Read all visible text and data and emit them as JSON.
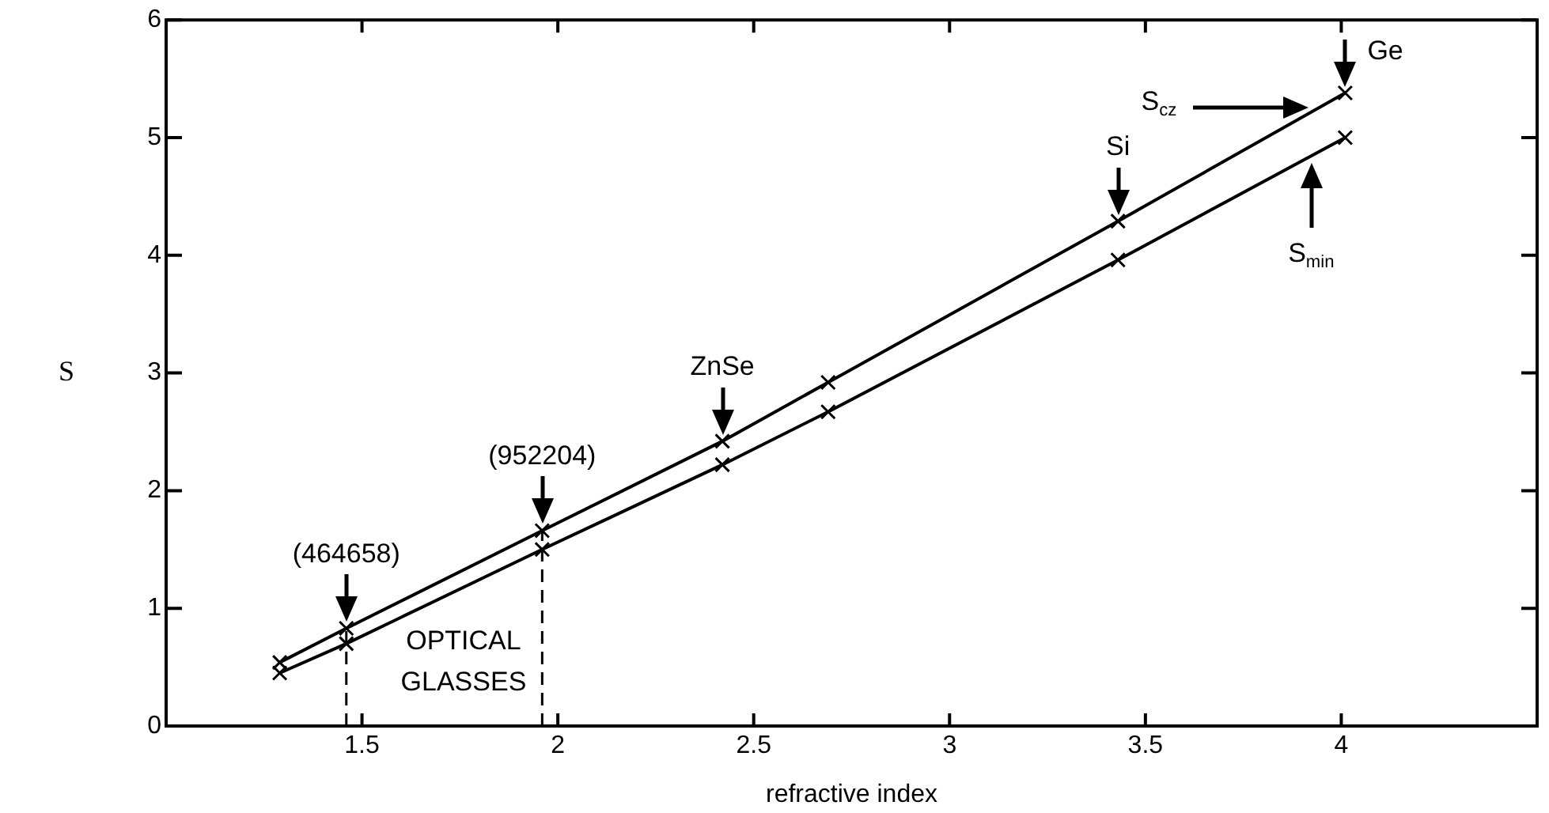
{
  "chart_data": {
    "type": "line",
    "xlabel": "refractive index",
    "ylabel": "S",
    "x": [
      1.29,
      1.46,
      1.96,
      2.42,
      2.69,
      3.43,
      4.01
    ],
    "series": [
      {
        "name": "S$_{cz}$",
        "color": "#000000",
        "values": [
          0.54,
          0.83,
          1.66,
          2.42,
          2.92,
          4.29,
          5.38
        ]
      },
      {
        "name": "S$_{min}$",
        "color": "#000000",
        "values": [
          0.45,
          0.7,
          1.5,
          2.22,
          2.67,
          3.96,
          5.0
        ]
      }
    ],
    "xlim": [
      1.0,
      4.5
    ],
    "xticks": [
      1.5,
      2,
      2.5,
      3,
      3.5,
      4
    ],
    "ylim": [
      0,
      6
    ],
    "yticks": [
      0,
      1,
      2,
      3,
      4,
      5,
      6
    ],
    "ref_lines": [
      {
        "axis": "x",
        "value": 1.46,
        "label": null,
        "line_style": "dashed"
      },
      {
        "axis": "x",
        "value": 1.96,
        "label": "OPTICAL GLASSES",
        "line_style": "dashed"
      }
    ],
    "annotations": [
      {
        "text": "(464658)",
        "x": 1.46,
        "y": 0.83
      },
      {
        "text": "(952204)",
        "x": 1.96,
        "y": 1.66
      },
      {
        "text": "ZnSe",
        "x": 2.42,
        "y": 2.42
      },
      {
        "text": "Si",
        "x": 3.43,
        "y": 4.29
      },
      {
        "text": "Ge",
        "x": 4.01,
        "y": 5.38
      }
    ],
    "grid": false,
    "marker": "cross",
    "line_style": "solid"
  }
}
